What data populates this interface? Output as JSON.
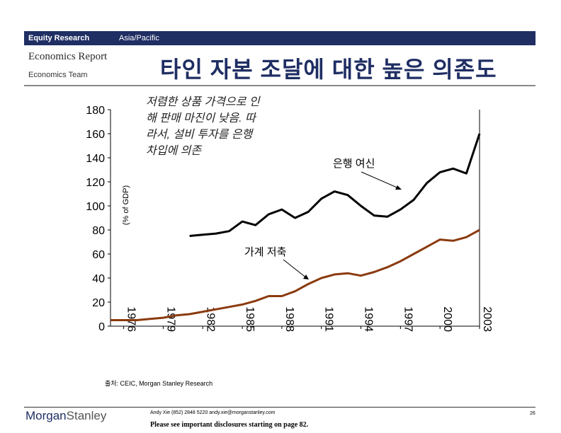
{
  "header": {
    "research_label": "Equity Research",
    "region": "Asia/Pacific",
    "report_type": "Economics Report",
    "team": "Economics Team",
    "title": "타인 자본 조달에 대한 높은 의존도"
  },
  "colors": {
    "navy": "#1f2e63",
    "bank_series": "#000000",
    "household_series": "#8b3a0f"
  },
  "chart_data": {
    "type": "line",
    "ylabel": "(% of GDP)",
    "ylim": [
      0,
      180
    ],
    "y_ticks": [
      "0",
      "20",
      "40",
      "60",
      "80",
      "100",
      "120",
      "140",
      "160",
      "180"
    ],
    "xlim": [
      1975,
      2003
    ],
    "x_ticks": [
      "1976",
      "1979",
      "1982",
      "1985",
      "1988",
      "1991",
      "1994",
      "1997",
      "2000",
      "2003"
    ],
    "grid": false,
    "series": [
      {
        "name": "은행 여신",
        "x": [
          1981,
          1982,
          1983,
          1984,
          1985,
          1986,
          1987,
          1988,
          1989,
          1990,
          1991,
          1992,
          1993,
          1994,
          1995,
          1996,
          1997,
          1998,
          1999,
          2000,
          2001,
          2002,
          2003
        ],
        "values": [
          75,
          76,
          77,
          79,
          87,
          84,
          93,
          97,
          90,
          95,
          106,
          112,
          109,
          100,
          92,
          91,
          97,
          105,
          119,
          128,
          131,
          127,
          160
        ]
      },
      {
        "name": "가계 저축",
        "x": [
          1975,
          1976,
          1977,
          1978,
          1979,
          1980,
          1981,
          1982,
          1983,
          1984,
          1985,
          1986,
          1987,
          1988,
          1989,
          1990,
          1991,
          1992,
          1993,
          1994,
          1995,
          1996,
          1997,
          1998,
          1999,
          2000,
          2001,
          2002,
          2003
        ],
        "values": [
          5,
          5,
          5,
          6,
          7,
          9,
          10,
          12,
          14,
          16,
          18,
          21,
          25,
          25,
          29,
          35,
          40,
          43,
          44,
          42,
          45,
          49,
          54,
          60,
          66,
          72,
          71,
          74,
          80
        ]
      }
    ],
    "annotations": [
      "저렴한 상품 가격으로 인해 판매 마진이 낮음. 따라서, 설비 투자를 은행 차입에 의존"
    ]
  },
  "footer": {
    "source": "출처: CEIC, Morgan Stanley Research",
    "contact": "Andy Xie (852) 2848 5220 andy.xie@morganstanley.com",
    "disclosure": "Please see important disclosures starting on page 82.",
    "page": "26",
    "logo_part1": "Morgan",
    "logo_part2": "Stanley"
  }
}
